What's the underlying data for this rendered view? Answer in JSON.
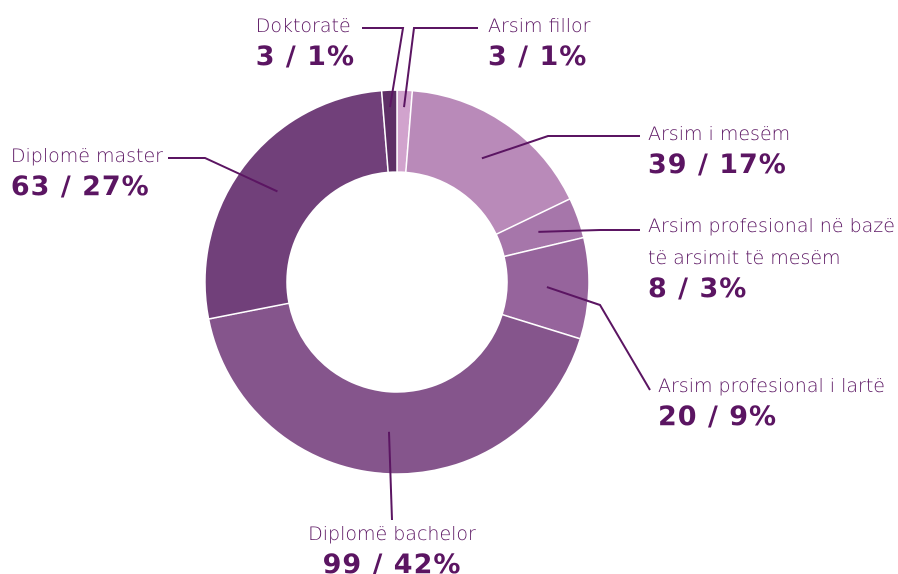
{
  "chart_data": {
    "type": "donut",
    "categories": [
      "Arsim fillor",
      "Arsim i mesëm",
      "Arsim profesional në bazë të arsimit të mesëm",
      "Arsim profesional i lartë",
      "Diplomë bachelor",
      "Diplomë master",
      "Doktoratë"
    ],
    "values": [
      3,
      39,
      8,
      20,
      99,
      63,
      3
    ],
    "value_labels": [
      "3 / 1%",
      "39 / 17%",
      "8 / 3%",
      "20 / 9%",
      "99 / 42%",
      "63 / 27%",
      "3 / 1%"
    ],
    "colors": [
      "#d1a3cd",
      "#b98ab9",
      "#a676aa",
      "#96649c",
      "#85558c",
      "#71407a",
      "#5e2f66"
    ]
  }
}
